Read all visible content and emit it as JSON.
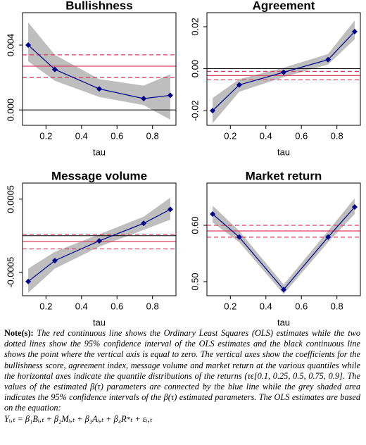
{
  "chart_data": [
    {
      "type": "line",
      "title": "Bullishness",
      "xlabel": "tau",
      "x": [
        0.1,
        0.25,
        0.5,
        0.75,
        0.9
      ],
      "values": [
        0.004,
        0.0025,
        0.0013,
        0.0007,
        0.0009
      ],
      "color": "#00008b",
      "band_lower": [
        0.003,
        0.0018,
        0.0008,
        0.0003,
        -0.0006
      ],
      "band_upper": [
        0.0054,
        0.0034,
        0.0019,
        0.0015,
        0.0022
      ],
      "band_color": "#bebebe",
      "ols": 0.0027,
      "ols_ci": [
        0.002,
        0.0034
      ],
      "ols_color": "#dc4060",
      "xlim": [
        0.068,
        0.932
      ],
      "xticks": [
        0.2,
        0.4,
        0.6,
        0.8
      ],
      "ylim": [
        -0.00095,
        0.006
      ],
      "yticks": [
        {
          "value": 0,
          "label": "0.000"
        },
        0.004
      ]
    },
    {
      "type": "line",
      "title": "Agreement",
      "xlabel": "tau",
      "x": [
        0.1,
        0.25,
        0.5,
        0.75,
        0.9
      ],
      "values": [
        -0.02,
        -0.0077,
        -0.0017,
        0.0043,
        0.0177
      ],
      "color": "#00008b",
      "band_lower": [
        -0.026,
        -0.011,
        -0.004,
        0.002,
        0.014
      ],
      "band_upper": [
        -0.014,
        -0.005,
        0.0005,
        0.007,
        0.023
      ],
      "band_color": "#bebebe",
      "ols": -0.0033,
      "ols_ci": [
        -0.0053,
        -0.0013
      ],
      "ols_color": "#dc4060",
      "xlim": [
        0.068,
        0.932
      ],
      "xticks": [
        0.2,
        0.4,
        0.6,
        0.8
      ],
      "ylim": [
        -0.027,
        0.0267
      ],
      "yticks": [
        -0.02,
        {
          "value": 0,
          "label": "0.00"
        },
        0.02
      ]
    },
    {
      "type": "line",
      "title": "Message volume",
      "xlabel": "tau",
      "x": [
        0.1,
        0.25,
        0.5,
        0.75,
        0.9
      ],
      "values": [
        -0.000625,
        -0.00034,
        -7e-05,
        0.00017,
        0.00036
      ],
      "color": "#00008b",
      "band_lower": [
        -0.00078,
        -0.00045,
        -0.00015,
        8e-05,
        0.00022
      ],
      "band_upper": [
        -0.00045,
        -0.00022,
        2e-05,
        0.00026,
        0.00052
      ],
      "band_color": "#bebebe",
      "ols": -8e-05,
      "ols_ci": [
        -0.00018,
        2e-05
      ],
      "ols_color": "#dc4060",
      "xlim": [
        0.068,
        0.932
      ],
      "xticks": [
        0.2,
        0.4,
        0.6,
        0.8
      ],
      "ylim": [
        -0.00082,
        0.00072
      ],
      "yticks": [
        -0.0005,
        0.0005
      ]
    },
    {
      "type": "line",
      "title": "Market return",
      "xlabel": "tau",
      "x": [
        0.1,
        0.25,
        0.5,
        0.75,
        0.9
      ],
      "values": [
        0.62,
        0.579,
        0.486,
        0.579,
        0.6325
      ],
      "color": "#00008b",
      "band_lower": [
        0.605,
        0.57,
        0.478,
        0.57,
        0.62
      ],
      "band_upper": [
        0.635,
        0.59,
        0.495,
        0.59,
        0.648
      ],
      "band_color": "#bebebe",
      "ols": 0.59,
      "ols_ci": [
        0.579,
        0.6
      ],
      "ols_color": "#dc4060",
      "xlim": [
        0.068,
        0.932
      ],
      "xticks": [
        0.2,
        0.4,
        0.6,
        0.8
      ],
      "ylim": [
        0.475,
        0.675
      ],
      "yticks": [
        {
          "value": 0.5,
          "label": "0.50"
        },
        {
          "value": 0.6,
          "label": "0.60"
        }
      ]
    }
  ],
  "note": {
    "label": "Note(s):",
    "text": "The red continuous line shows the Ordinary Least Squares (OLS) estimates while the two dotted lines show the 95% confidence interval of the OLS estimates and the black continuous line shows the point where the vertical axis is equal to zero. The vertical axes show the coefficients for the bullishness score, agreement index, message volume and market return at the various quantiles while the horizontal axes indicate the quantile distributions of the returns (τϵ[0.1, 0.25, 0.5, 0.75, 0.9]. The values of the estimated β(τ) parameters are connected by the blue line while the grey shaded area indicates the 95% confidence intervals of the β(τ) estimated parameters. The OLS estimates are based on the equation:",
    "equation": "Yᵢ,ₜ = β₁Bᵢ,ₜ + β₂Mᵢ,ₜ + β₃Aᵢ,ₜ + β₄Rᵐₜ + εᵢ,ₜ"
  }
}
